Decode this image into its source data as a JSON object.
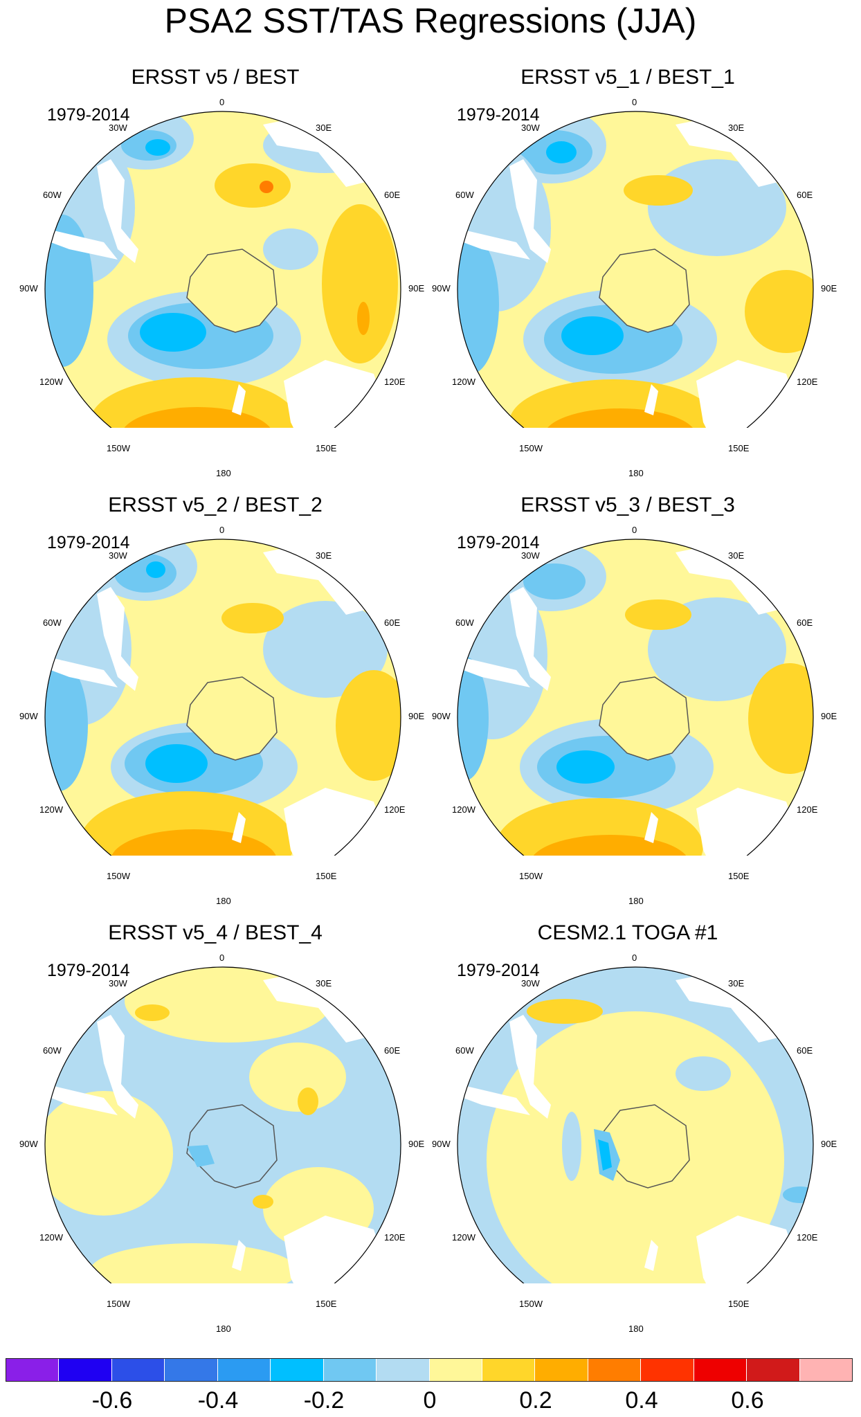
{
  "title": "PSA2 SST/TAS Regressions (JJA)",
  "period": "1979-2014",
  "lon_labels": {
    "l0": "0",
    "l30e": "30E",
    "l60e": "60E",
    "l90e": "90E",
    "l120e": "120E",
    "l150e": "150E",
    "l180": "180",
    "l150w": "150W",
    "l120w": "120W",
    "l90w": "90W",
    "l60w": "60W",
    "l30w": "30W"
  },
  "panels": [
    {
      "title": "ERSST v5 / BEST",
      "period": "1979-2014"
    },
    {
      "title": "ERSST v5_1 / BEST_1",
      "period": "1979-2014"
    },
    {
      "title": "ERSST v5_2 / BEST_2",
      "period": "1979-2014"
    },
    {
      "title": "ERSST v5_3 / BEST_3",
      "period": "1979-2014"
    },
    {
      "title": "ERSST v5_4 / BEST_4",
      "period": "1979-2014"
    },
    {
      "title": "CESM2.1 TOGA #1",
      "period": "1979-2014"
    }
  ],
  "colorbar": {
    "colors": [
      "#8a1fe8",
      "#1f00f2",
      "#2c4fe8",
      "#3478e8",
      "#2b9bf2",
      "#00bfff",
      "#70c8f2",
      "#b3dcf2",
      "#fff799",
      "#ffd62a",
      "#ffad00",
      "#ff7d00",
      "#ff3300",
      "#ee0000",
      "#d11a1a",
      "#ffb3b3"
    ],
    "labels": [
      "-0.6",
      "-0.4",
      "-0.2",
      "0",
      "0.2",
      "0.4",
      "0.6"
    ]
  },
  "colors": {
    "yellow": "#fff799",
    "gold": "#ffd62a",
    "orange": "#ffad00",
    "dark_orange": "#ff7d00",
    "light_blue": "#b3dcf2",
    "mid_blue": "#70c8f2",
    "cyan": "#00bfff",
    "land": "#ffffff"
  }
}
